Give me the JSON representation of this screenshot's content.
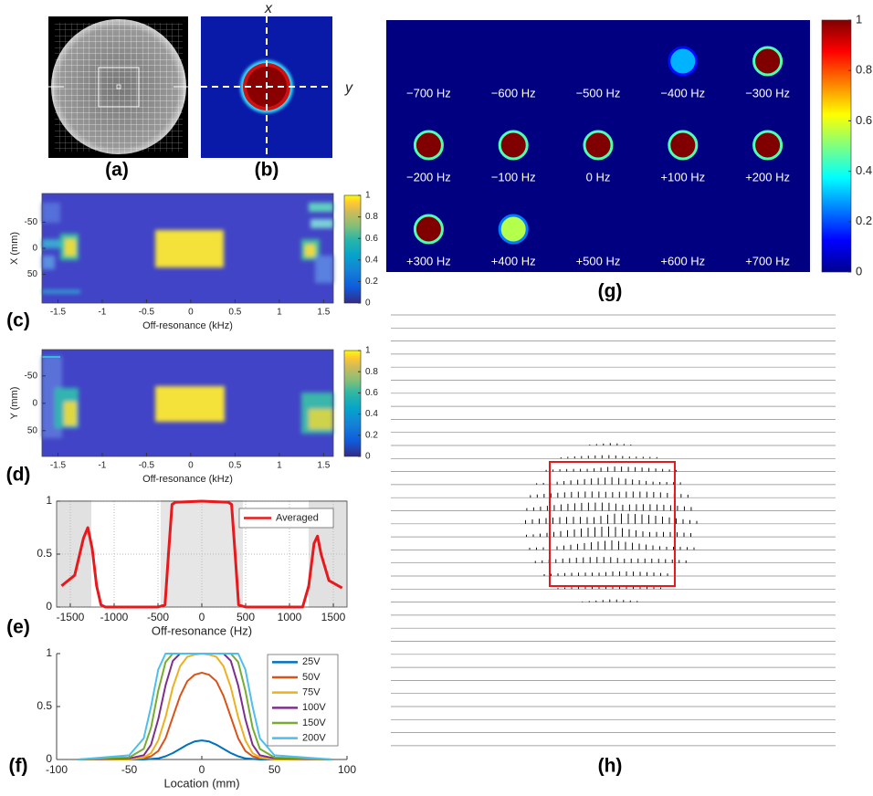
{
  "panels": {
    "a": {
      "label": "(a)"
    },
    "b": {
      "label": "(b)",
      "x_axis": "x",
      "y_axis": "y"
    },
    "h": {
      "label": "(h)"
    }
  },
  "chart_data": [
    {
      "type": "heatmap",
      "label": "(c)",
      "xlabel": "Off-resonance (kHz)",
      "ylabel": "X (mm)",
      "xlim": [
        -1.68,
        1.61
      ],
      "xticks": [
        -1.5,
        -1,
        -0.5,
        0,
        0.5,
        1,
        1.5
      ],
      "ylim": [
        -105,
        105
      ],
      "y_direction": "reverse",
      "yticks": [
        -50,
        0,
        50
      ],
      "colorbar": {
        "lim": [
          0,
          1
        ],
        "ticks": [
          0,
          0.2,
          0.4,
          0.6,
          0.8,
          1
        ]
      }
    },
    {
      "type": "heatmap",
      "label": "(d)",
      "xlabel": "Off-resonance (kHz)",
      "ylabel": "Y (mm)",
      "xlim": [
        -1.68,
        1.61
      ],
      "xticks": [
        -1.5,
        -1,
        -0.5,
        0,
        0.5,
        1,
        1.5
      ],
      "ylim": [
        -98,
        97
      ],
      "y_direction": "reverse",
      "yticks": [
        -50,
        0,
        50
      ],
      "colorbar": {
        "lim": [
          0,
          1
        ],
        "ticks": [
          0,
          0.2,
          0.4,
          0.6,
          0.8,
          1
        ]
      }
    },
    {
      "type": "line",
      "label": "(e)",
      "xlabel": "Off-resonance (Hz)",
      "xlim": [
        -1656,
        1656
      ],
      "xticks": [
        -1500,
        -1000,
        -500,
        0,
        500,
        1000,
        1500
      ],
      "ylim": [
        0,
        1
      ],
      "yticks": [
        0,
        0.5,
        1
      ],
      "grid": true,
      "legend": "top-right",
      "x": [
        -1600,
        -1450,
        -1350,
        -1300,
        -1250,
        -1200,
        -1150,
        -1100,
        -500,
        -420,
        -380,
        -340,
        -300,
        0,
        300,
        340,
        380,
        420,
        500,
        1150,
        1220,
        1280,
        1320,
        1360,
        1450,
        1600
      ],
      "series": [
        {
          "name": "Averaged",
          "color": "#e8191c",
          "values": [
            0.2,
            0.3,
            0.65,
            0.75,
            0.55,
            0.2,
            0.02,
            0,
            0,
            0.02,
            0.5,
            0.97,
            0.99,
            1,
            0.99,
            0.97,
            0.5,
            0.02,
            0,
            0,
            0.2,
            0.6,
            0.67,
            0.5,
            0.25,
            0.18
          ]
        }
      ]
    },
    {
      "type": "line",
      "label": "(f)",
      "xlabel": "Location (mm)",
      "xlim": [
        -100,
        100
      ],
      "xticks": [
        -100,
        -50,
        0,
        50,
        100
      ],
      "ylim": [
        0,
        1
      ],
      "yticks": [
        0,
        0.5,
        1
      ],
      "grid": false,
      "legend": "top-right",
      "x": [
        -85,
        -50,
        -40,
        -35,
        -30,
        -25,
        -20,
        -15,
        -10,
        -5,
        0,
        5,
        10,
        15,
        20,
        25,
        30,
        35,
        40,
        50,
        90
      ],
      "series": [
        {
          "name": "25V",
          "color": "#0072bd",
          "values": [
            0,
            0,
            0,
            0.005,
            0.01,
            0.03,
            0.06,
            0.1,
            0.14,
            0.17,
            0.18,
            0.17,
            0.14,
            0.1,
            0.06,
            0.03,
            0.01,
            0.005,
            0,
            0,
            0
          ]
        },
        {
          "name": "50V",
          "color": "#d95319",
          "values": [
            0,
            0,
            0.01,
            0.03,
            0.08,
            0.2,
            0.4,
            0.6,
            0.74,
            0.8,
            0.82,
            0.8,
            0.74,
            0.6,
            0.4,
            0.2,
            0.08,
            0.03,
            0.01,
            0,
            0
          ]
        },
        {
          "name": "75V",
          "color": "#edb120",
          "values": [
            0,
            0,
            0.02,
            0.06,
            0.18,
            0.4,
            0.68,
            0.88,
            0.97,
            0.99,
            1,
            0.99,
            0.97,
            0.88,
            0.68,
            0.4,
            0.18,
            0.06,
            0.02,
            0,
            0
          ]
        },
        {
          "name": "100V",
          "color": "#7e2f8e",
          "values": [
            0,
            0.01,
            0.04,
            0.14,
            0.38,
            0.7,
            0.93,
            1,
            1,
            1,
            1,
            1,
            1,
            1,
            0.93,
            0.7,
            0.38,
            0.14,
            0.04,
            0.01,
            0
          ]
        },
        {
          "name": "150V",
          "color": "#77ac30",
          "values": [
            0,
            0.02,
            0.1,
            0.3,
            0.65,
            0.92,
            1,
            1,
            1,
            1,
            1,
            1,
            1,
            1,
            1,
            0.92,
            0.65,
            0.3,
            0.1,
            0.02,
            0
          ]
        },
        {
          "name": "200V",
          "color": "#4dbeee",
          "values": [
            0,
            0.04,
            0.2,
            0.5,
            0.85,
            1,
            1,
            1,
            1,
            1,
            1,
            1,
            1,
            1,
            1,
            1,
            0.85,
            0.5,
            0.2,
            0.04,
            0
          ]
        }
      ]
    },
    {
      "type": "image-grid",
      "label": "(g)",
      "colormap": "jet",
      "categories": [
        "−700 Hz",
        "−600 Hz",
        "−500 Hz",
        "−400 Hz",
        "−300 Hz",
        "−200 Hz",
        "−100 Hz",
        "0 Hz",
        "+100 Hz",
        "+200 Hz",
        "+300 Hz",
        "+400 Hz",
        "+500 Hz",
        "+600 Hz",
        "+700 Hz"
      ],
      "values": [
        0,
        0,
        0,
        0.3,
        1,
        1,
        1,
        1,
        1,
        1,
        1,
        0.55,
        0,
        0,
        0
      ],
      "colorbar": {
        "lim": [
          0,
          1
        ],
        "ticks": [
          0,
          0.2,
          0.4,
          0.6,
          0.8,
          1
        ]
      }
    }
  ]
}
